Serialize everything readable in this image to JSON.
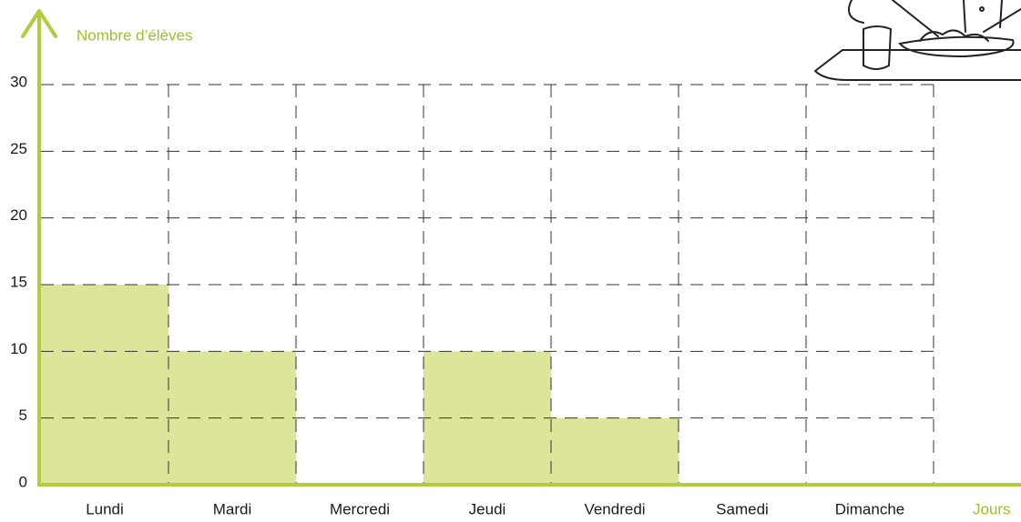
{
  "chart_data": {
    "type": "bar",
    "y_label": "Nombre d’élèves",
    "x_label": "Jours",
    "categories": [
      "Lundi",
      "Mardi",
      "Mercredi",
      "Jeudi",
      "Vendredi",
      "Samedi",
      "Dimanche"
    ],
    "values": [
      15,
      10,
      0,
      10,
      5,
      0,
      0
    ],
    "color": "#dde59b",
    "axis_color": "#b3cc3c",
    "ylim": [
      0,
      30
    ],
    "yticks": [
      0,
      5,
      10,
      15,
      20,
      25,
      30
    ],
    "grid": true
  }
}
